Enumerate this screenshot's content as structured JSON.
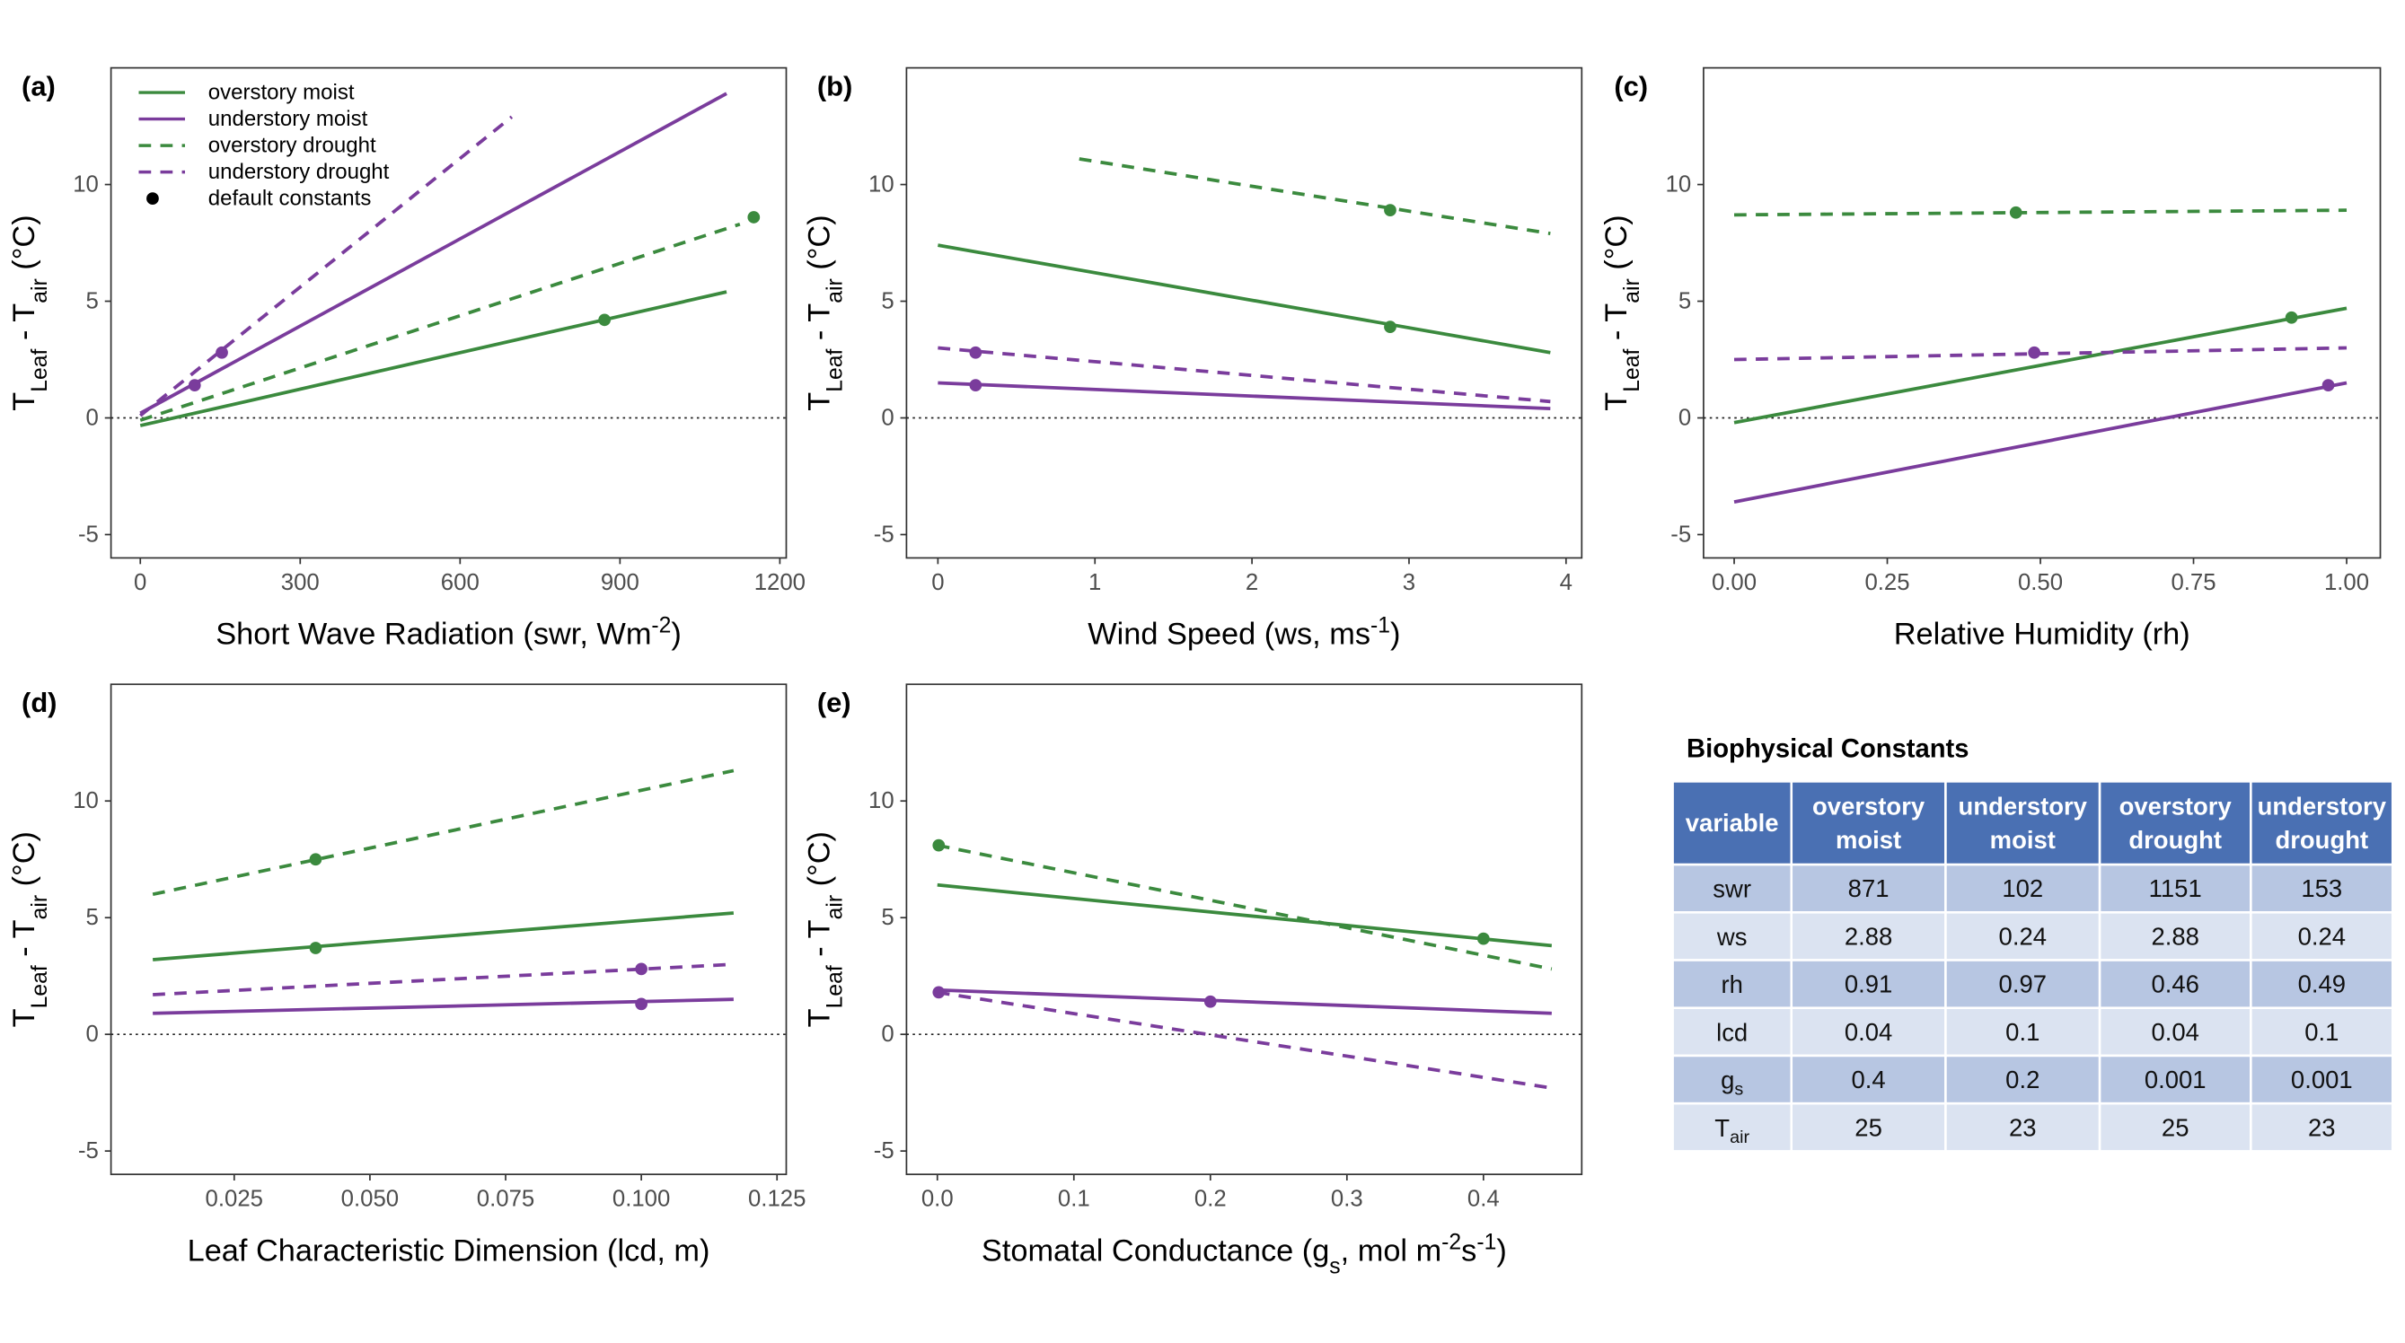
{
  "chart_data": [
    {
      "type": "line",
      "label": "(a)",
      "xlabel": [
        {
          "text": "Short Wave Radiation (swr, Wm"
        },
        {
          "sup": "-2"
        },
        {
          "text": ")"
        }
      ],
      "ylabel": [
        {
          "text": "T"
        },
        {
          "sub": "Leaf"
        },
        {
          "text": " - T"
        },
        {
          "sub": "air"
        },
        {
          "text": " (°C)"
        }
      ],
      "xlim": [
        -55,
        1212
      ],
      "ylim": [
        -6,
        15
      ],
      "xticks": [
        0,
        300,
        600,
        900,
        1200
      ],
      "yticks": [
        -5,
        0,
        5,
        10
      ],
      "hline": 0,
      "grid": false,
      "legend": {
        "position": "top-left",
        "point_label": "default constants"
      },
      "series": [
        {
          "name": "overstory moist",
          "color": "#3b8a3e",
          "dashed": false,
          "x": [
            0,
            1100
          ],
          "values": [
            -0.33,
            5.4
          ],
          "point_x": 871,
          "point_y": 4.2
        },
        {
          "name": "understory moist",
          "color": "#7a3c9c",
          "dashed": false,
          "x": [
            0,
            1100
          ],
          "values": [
            0.2,
            13.9
          ],
          "point_x": 102,
          "point_y": 1.4
        },
        {
          "name": "overstory drought",
          "color": "#3b8a3e",
          "dashed": true,
          "x": [
            0,
            1125
          ],
          "values": [
            -0.1,
            8.3
          ],
          "point_x": 1151,
          "point_y": 8.6
        },
        {
          "name": "understory drought",
          "color": "#7a3c9c",
          "dashed": true,
          "x": [
            0,
            697
          ],
          "values": [
            0.1,
            12.9
          ],
          "point_x": 153,
          "point_y": 2.8
        }
      ]
    },
    {
      "type": "line",
      "label": "(b)",
      "xlabel": [
        {
          "text": "Wind Speed (ws, ms"
        },
        {
          "sup": "-1"
        },
        {
          "text": ")"
        }
      ],
      "ylabel": [
        {
          "text": "T"
        },
        {
          "sub": "Leaf"
        },
        {
          "text": " - T"
        },
        {
          "sub": "air"
        },
        {
          "text": " (°C)"
        }
      ],
      "xlim": [
        -0.2,
        4.1
      ],
      "ylim": [
        -6,
        15
      ],
      "xticks": [
        0,
        1,
        2,
        3,
        4
      ],
      "yticks": [
        -5,
        0,
        5,
        10
      ],
      "hline": 0,
      "grid": false,
      "series": [
        {
          "name": "overstory moist",
          "color": "#3b8a3e",
          "dashed": false,
          "x": [
            0,
            3.9
          ],
          "values": [
            7.4,
            2.8
          ],
          "point_x": 2.88,
          "point_y": 3.9
        },
        {
          "name": "understory moist",
          "color": "#7a3c9c",
          "dashed": false,
          "x": [
            0,
            3.9
          ],
          "values": [
            1.5,
            0.4
          ],
          "point_x": 0.24,
          "point_y": 1.4
        },
        {
          "name": "overstory drought",
          "color": "#3b8a3e",
          "dashed": true,
          "x": [
            0.9,
            3.9
          ],
          "values": [
            11.1,
            7.9
          ],
          "point_x": 2.88,
          "point_y": 8.9
        },
        {
          "name": "understory drought",
          "color": "#7a3c9c",
          "dashed": true,
          "x": [
            0,
            3.9
          ],
          "values": [
            3.0,
            0.7
          ],
          "point_x": 0.24,
          "point_y": 2.8
        }
      ]
    },
    {
      "type": "line",
      "label": "(c)",
      "xlabel": [
        {
          "text": "Relative Humidity (rh)"
        }
      ],
      "ylabel": [
        {
          "text": "T"
        },
        {
          "sub": "Leaf"
        },
        {
          "text": " - T"
        },
        {
          "sub": "air"
        },
        {
          "text": " (°C)"
        }
      ],
      "xlim": [
        -0.05,
        1.055
      ],
      "ylim": [
        -6,
        15
      ],
      "xticks": [
        {
          "value": 0,
          "label": "0.00"
        },
        0.25,
        {
          "value": 0.5,
          "label": "0.50"
        },
        0.75,
        {
          "value": 1,
          "label": "1.00"
        }
      ],
      "yticks": [
        -5,
        0,
        5,
        10
      ],
      "hline": 0,
      "grid": false,
      "series": [
        {
          "name": "overstory moist",
          "color": "#3b8a3e",
          "dashed": false,
          "x": [
            0,
            1
          ],
          "values": [
            -0.2,
            4.7
          ],
          "point_x": 0.91,
          "point_y": 4.3
        },
        {
          "name": "understory moist",
          "color": "#7a3c9c",
          "dashed": false,
          "x": [
            0,
            1
          ],
          "values": [
            -3.6,
            1.5
          ],
          "point_x": 0.97,
          "point_y": 1.4
        },
        {
          "name": "overstory drought",
          "color": "#3b8a3e",
          "dashed": true,
          "x": [
            0,
            1
          ],
          "values": [
            8.7,
            8.9
          ],
          "point_x": 0.46,
          "point_y": 8.8
        },
        {
          "name": "understory drought",
          "color": "#7a3c9c",
          "dashed": true,
          "x": [
            0,
            1
          ],
          "values": [
            2.5,
            3.0
          ],
          "point_x": 0.49,
          "point_y": 2.8
        }
      ]
    },
    {
      "type": "line",
      "label": "(d)",
      "xlabel": [
        {
          "text": "Leaf Characteristic Dimension (lcd, m)"
        }
      ],
      "ylabel": [
        {
          "text": "T"
        },
        {
          "sub": "Leaf"
        },
        {
          "text": " - T"
        },
        {
          "sub": "air"
        },
        {
          "text": " (°C)"
        }
      ],
      "xlim": [
        0.0023,
        0.1267
      ],
      "ylim": [
        -6,
        15
      ],
      "xticks": [
        0.025,
        {
          "value": 0.05,
          "label": "0.050"
        },
        0.075,
        {
          "value": 0.1,
          "label": "0.100"
        },
        0.125
      ],
      "yticks": [
        -5,
        0,
        5,
        10
      ],
      "hline": 0,
      "grid": false,
      "series": [
        {
          "name": "overstory moist",
          "color": "#3b8a3e",
          "dashed": false,
          "x": [
            0.01,
            0.117
          ],
          "values": [
            3.2,
            5.2
          ],
          "point_x": 0.04,
          "point_y": 3.7
        },
        {
          "name": "understory moist",
          "color": "#7a3c9c",
          "dashed": false,
          "x": [
            0.01,
            0.117
          ],
          "values": [
            0.9,
            1.5
          ],
          "point_x": 0.1,
          "point_y": 1.3
        },
        {
          "name": "overstory drought",
          "color": "#3b8a3e",
          "dashed": true,
          "x": [
            0.01,
            0.117
          ],
          "values": [
            6.0,
            11.3
          ],
          "point_x": 0.04,
          "point_y": 7.5
        },
        {
          "name": "understory drought",
          "color": "#7a3c9c",
          "dashed": true,
          "x": [
            0.01,
            0.117
          ],
          "values": [
            1.7,
            3.0
          ],
          "point_x": 0.1,
          "point_y": 2.8
        }
      ]
    },
    {
      "type": "line",
      "label": "(e)",
      "xlabel": [
        {
          "text": "Stomatal Conductance (g"
        },
        {
          "sub": "s"
        },
        {
          "text": ", mol m"
        },
        {
          "sup": "-2"
        },
        {
          "text": "s"
        },
        {
          "sup": "-1"
        },
        {
          "text": ")"
        }
      ],
      "ylabel": [
        {
          "text": "T"
        },
        {
          "sub": "Leaf"
        },
        {
          "text": " - T"
        },
        {
          "sub": "air"
        },
        {
          "text": " (°C)"
        }
      ],
      "xlim": [
        -0.0226,
        0.472
      ],
      "ylim": [
        -6,
        15
      ],
      "xticks": [
        {
          "value": 0,
          "label": "0.0"
        },
        0.1,
        0.2,
        0.3,
        0.4
      ],
      "yticks": [
        -5,
        0,
        5,
        10
      ],
      "hline": 0,
      "grid": false,
      "series": [
        {
          "name": "overstory moist",
          "color": "#3b8a3e",
          "dashed": false,
          "x": [
            0,
            0.45
          ],
          "values": [
            6.4,
            3.8
          ],
          "point_x": 0.4,
          "point_y": 4.1
        },
        {
          "name": "understory moist",
          "color": "#7a3c9c",
          "dashed": false,
          "x": [
            0,
            0.45
          ],
          "values": [
            1.9,
            0.9
          ],
          "point_x": 0.2,
          "point_y": 1.4
        },
        {
          "name": "overstory drought",
          "color": "#3b8a3e",
          "dashed": true,
          "x": [
            0,
            0.45
          ],
          "values": [
            8.1,
            2.8
          ],
          "point_x": 0.001,
          "point_y": 8.1
        },
        {
          "name": "understory drought",
          "color": "#7a3c9c",
          "dashed": true,
          "x": [
            0,
            0.45
          ],
          "values": [
            1.8,
            -2.3
          ],
          "point_x": 0.001,
          "point_y": 1.8
        }
      ]
    }
  ],
  "table": {
    "title": "Biophysical Constants",
    "header": [
      [
        "variable"
      ],
      [
        "overstory",
        "moist"
      ],
      [
        "understory",
        "moist"
      ],
      [
        "overstory",
        "drought"
      ],
      [
        "understory",
        "drought"
      ]
    ],
    "rows": [
      {
        "label": {
          "text": "swr"
        },
        "values": [
          871,
          102,
          1151,
          153
        ]
      },
      {
        "label": {
          "text": "ws"
        },
        "values": [
          2.88,
          0.24,
          2.88,
          0.24
        ]
      },
      {
        "label": {
          "text": "rh"
        },
        "values": [
          0.91,
          0.97,
          0.46,
          0.49
        ]
      },
      {
        "label": {
          "text": "lcd"
        },
        "values": [
          0.04,
          0.1,
          0.04,
          0.1
        ]
      },
      {
        "label": {
          "text": "g",
          "sub": "s"
        },
        "values": [
          0.4,
          0.2,
          0.001,
          0.001
        ]
      },
      {
        "label": {
          "text": "T",
          "sub": "air"
        },
        "values": [
          25,
          23,
          25,
          23
        ]
      }
    ]
  }
}
